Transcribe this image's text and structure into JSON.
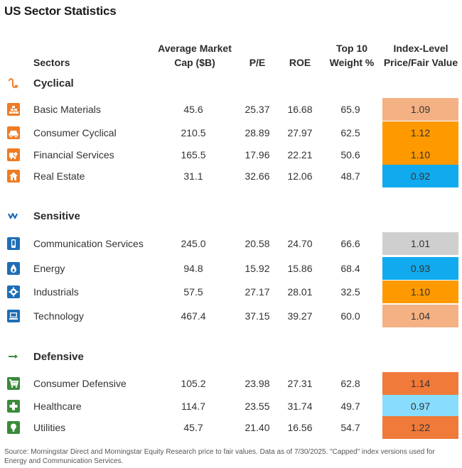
{
  "title": "US Sector Statistics",
  "headers": {
    "sectors": "Sectors",
    "market_cap_line1": "Average Market",
    "market_cap_line2": "Cap ($B)",
    "pe": "P/E",
    "roe": "ROE",
    "weight_line1": "Top 10",
    "weight_line2": "Weight %",
    "pfv_line1": "Index-Level",
    "pfv_line2": "Price/Fair Value"
  },
  "colors": {
    "icon_orange": "#f07b22",
    "icon_blue": "#1f6eb5",
    "icon_green": "#3a8a3a",
    "light_orange": "#f4b183",
    "orange": "#ff9900",
    "deep_orange": "#f07a3a",
    "blue": "#11aaee",
    "light_blue": "#88ddff",
    "gray": "#cfcfcf"
  },
  "groups": [
    {
      "name": "Cyclical",
      "icon": "cyclical-icon",
      "rows": [
        {
          "sector": "Basic Materials",
          "icon": "basic-materials-icon",
          "market_cap": "45.6",
          "pe": "25.37",
          "roe": "16.68",
          "weight": "65.9",
          "pfv": "1.09",
          "pfv_color": "#f4b183"
        },
        {
          "sector": "Consumer Cyclical",
          "icon": "consumer-cyclical-icon",
          "market_cap": "210.5",
          "pe": "28.89",
          "roe": "27.97",
          "weight": "62.5",
          "pfv": "1.12",
          "pfv_color": "#ff9900"
        },
        {
          "sector": "Financial Services",
          "icon": "financial-services-icon",
          "market_cap": "165.5",
          "pe": "17.96",
          "roe": "22.21",
          "weight": "50.6",
          "pfv": "1.10",
          "pfv_color": "#ff9900"
        },
        {
          "sector": "Real Estate",
          "icon": "real-estate-icon",
          "market_cap": "31.1",
          "pe": "32.66",
          "roe": "12.06",
          "weight": "48.7",
          "pfv": "0.92",
          "pfv_color": "#11aaee"
        }
      ]
    },
    {
      "name": "Sensitive",
      "icon": "sensitive-icon",
      "rows": [
        {
          "sector": "Communication Services",
          "icon": "communication-services-icon",
          "market_cap": "245.0",
          "pe": "20.58",
          "roe": "24.70",
          "weight": "66.6",
          "pfv": "1.01",
          "pfv_color": "#cfcfcf"
        },
        {
          "sector": "Energy",
          "icon": "energy-icon",
          "market_cap": "94.8",
          "pe": "15.92",
          "roe": "15.86",
          "weight": "68.4",
          "pfv": "0.93",
          "pfv_color": "#11aaee"
        },
        {
          "sector": "Industrials",
          "icon": "industrials-icon",
          "market_cap": "57.5",
          "pe": "27.17",
          "roe": "28.01",
          "weight": "32.5",
          "pfv": "1.10",
          "pfv_color": "#ff9900"
        },
        {
          "sector": "Technology",
          "icon": "technology-icon",
          "market_cap": "467.4",
          "pe": "37.15",
          "roe": "39.27",
          "weight": "60.0",
          "pfv": "1.04",
          "pfv_color": "#f4b183"
        }
      ]
    },
    {
      "name": "Defensive",
      "icon": "defensive-icon",
      "rows": [
        {
          "sector": "Consumer Defensive",
          "icon": "consumer-defensive-icon",
          "market_cap": "105.2",
          "pe": "23.98",
          "roe": "27.31",
          "weight": "62.8",
          "pfv": "1.14",
          "pfv_color": "#f07a3a"
        },
        {
          "sector": "Healthcare",
          "icon": "healthcare-icon",
          "market_cap": "114.7",
          "pe": "23.55",
          "roe": "31.74",
          "weight": "49.7",
          "pfv": "0.97",
          "pfv_color": "#88ddff"
        },
        {
          "sector": "Utilities",
          "icon": "utilities-icon",
          "market_cap": "45.7",
          "pe": "21.40",
          "roe": "16.56",
          "weight": "54.7",
          "pfv": "1.22",
          "pfv_color": "#f07a3a"
        }
      ]
    }
  ],
  "source": "Source: Morningstar Direct and Morningstar Equity Research price to fair values. Data as of 7/30/2025. \"Capped\" index versions used for Energy and Communication Services."
}
